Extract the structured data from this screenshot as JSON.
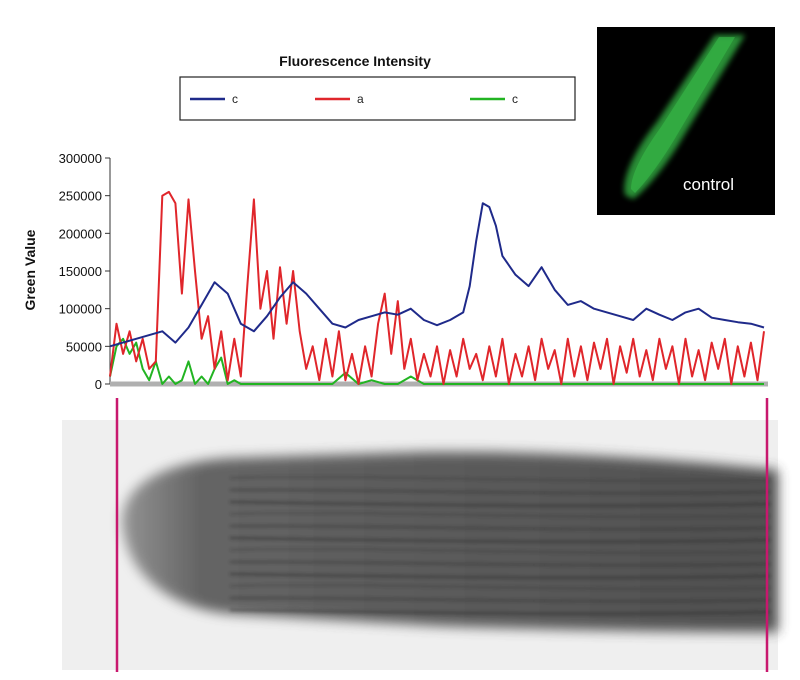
{
  "chart_data": {
    "type": "line",
    "title": "Fluorescence Intensity",
    "xlabel": "",
    "ylabel": "Green Value",
    "ylim": [
      0,
      300000
    ],
    "y_ticks": [
      {
        "value": 0,
        "label": "0"
      },
      {
        "value": 50000,
        "label": "50000"
      },
      {
        "value": 100000,
        "label": "100000"
      },
      {
        "value": 150000,
        "label": "150000"
      },
      {
        "value": 200000,
        "label": "200000"
      },
      {
        "value": 250000,
        "label": "250000"
      },
      {
        "value": 300000,
        "label": "300000"
      }
    ],
    "x_range": [
      0,
      100
    ],
    "grid": false,
    "legend_position": "top-center",
    "series": [
      {
        "name": "c",
        "color": "#1f2a8a",
        "x": [
          0,
          4,
          8,
          10,
          12,
          14,
          16,
          18,
          20,
          22,
          24,
          26,
          28,
          30,
          32,
          34,
          36,
          38,
          40,
          42,
          44,
          46,
          48,
          50,
          52,
          54,
          55,
          56,
          57,
          58,
          59,
          60,
          62,
          64,
          66,
          68,
          70,
          72,
          74,
          76,
          78,
          80,
          82,
          84,
          86,
          88,
          90,
          92,
          94,
          96,
          98,
          100
        ],
        "values": [
          50000,
          60000,
          70000,
          55000,
          75000,
          105000,
          135000,
          120000,
          80000,
          70000,
          90000,
          115000,
          135000,
          120000,
          100000,
          80000,
          75000,
          85000,
          90000,
          95000,
          92000,
          100000,
          85000,
          78000,
          85000,
          95000,
          130000,
          190000,
          240000,
          235000,
          210000,
          170000,
          145000,
          130000,
          155000,
          125000,
          105000,
          110000,
          100000,
          95000,
          90000,
          85000,
          100000,
          92000,
          85000,
          95000,
          100000,
          88000,
          85000,
          82000,
          80000,
          75000
        ]
      },
      {
        "name": "a",
        "color": "#e0262b",
        "x": [
          0,
          1,
          2,
          3,
          4,
          5,
          6,
          7,
          8,
          9,
          10,
          11,
          12,
          13,
          14,
          15,
          16,
          17,
          18,
          19,
          20,
          21,
          22,
          23,
          24,
          25,
          26,
          27,
          28,
          29,
          30,
          31,
          32,
          33,
          34,
          35,
          36,
          37,
          38,
          39,
          40,
          41,
          42,
          43,
          44,
          45,
          46,
          47,
          48,
          49,
          50,
          51,
          52,
          53,
          54,
          55,
          56,
          57,
          58,
          59,
          60,
          61,
          62,
          63,
          64,
          65,
          66,
          67,
          68,
          69,
          70,
          71,
          72,
          73,
          74,
          75,
          76,
          77,
          78,
          79,
          80,
          81,
          82,
          83,
          84,
          85,
          86,
          87,
          88,
          89,
          90,
          91,
          92,
          93,
          94,
          95,
          96,
          97,
          98,
          99,
          100
        ],
        "values": [
          10000,
          80000,
          40000,
          70000,
          30000,
          60000,
          20000,
          30000,
          250000,
          255000,
          240000,
          120000,
          245000,
          150000,
          60000,
          90000,
          20000,
          70000,
          5000,
          60000,
          10000,
          130000,
          245000,
          100000,
          150000,
          60000,
          155000,
          80000,
          150000,
          70000,
          20000,
          50000,
          5000,
          60000,
          10000,
          70000,
          5000,
          40000,
          0,
          50000,
          10000,
          80000,
          120000,
          40000,
          110000,
          20000,
          60000,
          5000,
          40000,
          10000,
          50000,
          0,
          45000,
          10000,
          60000,
          20000,
          40000,
          5000,
          50000,
          10000,
          60000,
          0,
          40000,
          10000,
          50000,
          5000,
          60000,
          20000,
          45000,
          0,
          60000,
          10000,
          50000,
          5000,
          55000,
          20000,
          60000,
          0,
          50000,
          15000,
          60000,
          10000,
          45000,
          5000,
          60000,
          20000,
          50000,
          0,
          60000,
          10000,
          45000,
          5000,
          55000,
          20000,
          60000,
          0,
          50000,
          10000,
          55000,
          5000,
          70000
        ]
      },
      {
        "name": "c",
        "color": "#22b422",
        "x": [
          0,
          1,
          2,
          3,
          4,
          5,
          6,
          7,
          8,
          9,
          10,
          11,
          12,
          13,
          14,
          15,
          16,
          17,
          18,
          19,
          20,
          22,
          24,
          26,
          28,
          30,
          32,
          34,
          36,
          38,
          40,
          42,
          44,
          46,
          48,
          50,
          52,
          54,
          56,
          58,
          60,
          62,
          64,
          66,
          68,
          70,
          72,
          74,
          76,
          78,
          80,
          82,
          84,
          86,
          88,
          90,
          92,
          94,
          96,
          98,
          100
        ],
        "values": [
          10000,
          50000,
          60000,
          40000,
          55000,
          20000,
          5000,
          30000,
          0,
          10000,
          0,
          5000,
          30000,
          0,
          10000,
          0,
          20000,
          35000,
          0,
          5000,
          0,
          0,
          0,
          0,
          0,
          0,
          0,
          0,
          15000,
          0,
          5000,
          0,
          0,
          10000,
          0,
          0,
          0,
          0,
          0,
          0,
          0,
          0,
          0,
          0,
          0,
          0,
          0,
          0,
          0,
          0,
          0,
          0,
          0,
          0,
          0,
          0,
          0,
          0,
          0,
          0,
          0
        ]
      }
    ]
  },
  "inset": {
    "label": "control",
    "background": "#000000",
    "glow_color": "#39c04a"
  },
  "micrograph": {
    "marker_color": "#c8186e",
    "tissue_color": "#4a4a4a"
  }
}
